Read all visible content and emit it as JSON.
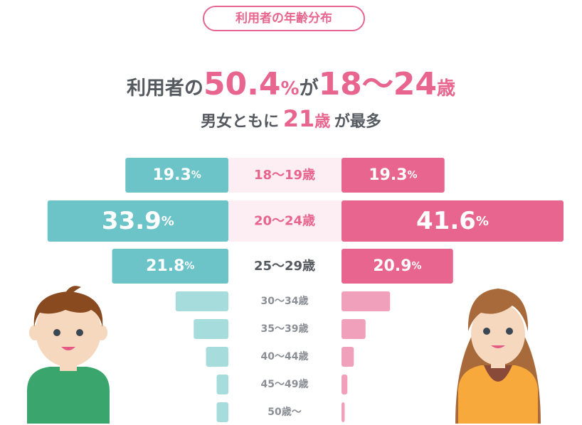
{
  "badge": "利用者の年齢分布",
  "headline": {
    "part1": "利用者の",
    "value": "50.4",
    "unit": "%",
    "part2": "が",
    "range": "18〜24",
    "age_unit": "歳"
  },
  "subheadline": {
    "part1": "男女ともに",
    "value": "21",
    "age_unit": "歳",
    "part2": "が最多"
  },
  "colors": {
    "male_strong": "#6cc4c8",
    "male_light": "#a7dcdd",
    "female_strong": "#e8658f",
    "female_light": "#f1a0bc",
    "label_pink": "#e8658f",
    "label_dark": "#555a60",
    "label_gray": "#8a8f96",
    "label_bg": "#fdeef3"
  },
  "chart_data": {
    "type": "bar",
    "orientation": "population-pyramid",
    "categories": [
      "18〜19歳",
      "20〜24歳",
      "25〜29歳",
      "30〜34歳",
      "35〜39歳",
      "40〜44歳",
      "45〜49歳",
      "50歳〜"
    ],
    "series": [
      {
        "side": "left",
        "values": [
          19.3,
          33.9,
          21.8,
          9.9,
          6.5,
          4.2,
          2.2,
          2.2
        ],
        "labels": [
          "19.3",
          "33.9",
          "21.8",
          "",
          "",
          "",
          "",
          ""
        ]
      },
      {
        "side": "right",
        "values": [
          19.3,
          41.6,
          20.9,
          9.1,
          4.5,
          2.3,
          1.1,
          0.6
        ],
        "labels": [
          "19.3",
          "41.6",
          "20.9",
          "",
          "",
          "",
          "",
          ""
        ]
      }
    ],
    "unit": "%"
  },
  "icons": [
    "male-avatar-icon",
    "female-avatar-icon"
  ]
}
